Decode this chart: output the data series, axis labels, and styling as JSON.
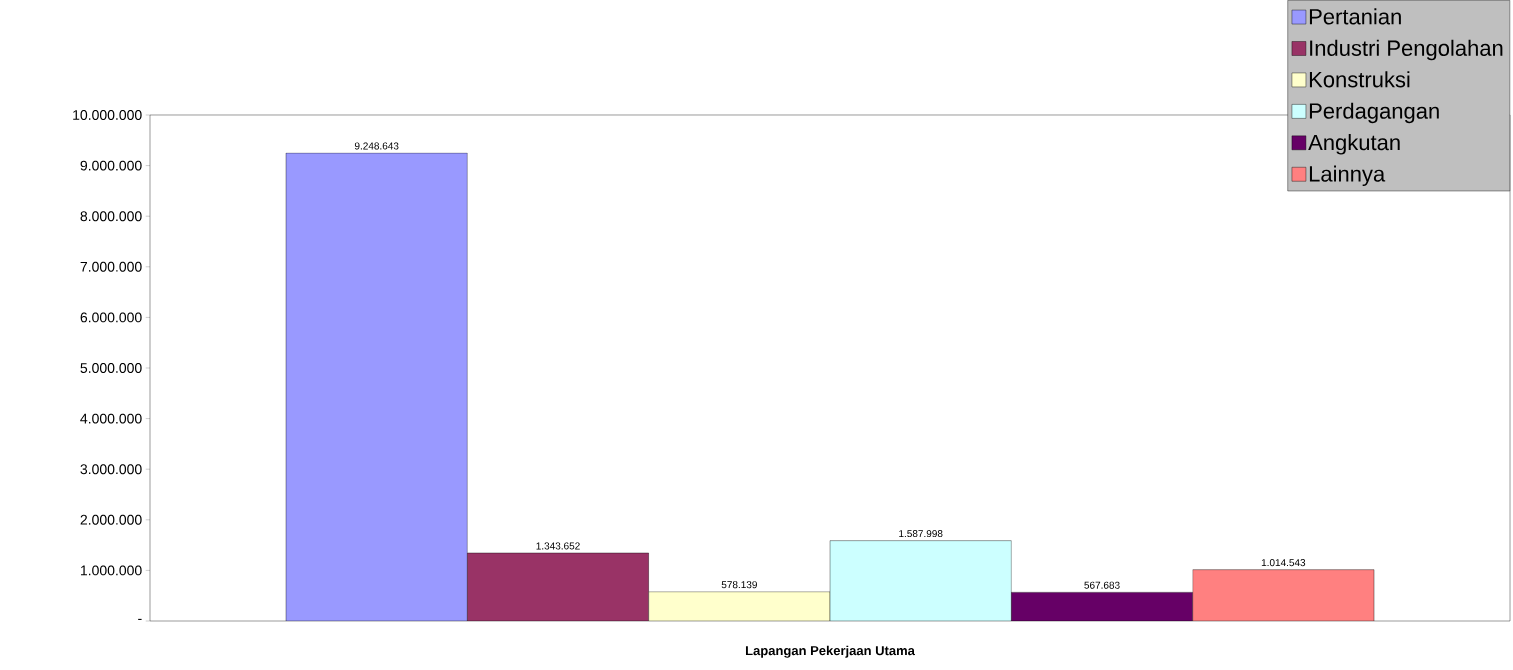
{
  "chart_data": {
    "type": "bar",
    "xlabel": "Lapangan Pekerjaan Utama",
    "categories": [
      null
    ],
    "series": [
      {
        "name": "Pertanian",
        "color": "#9999ff",
        "values": [
          9248643
        ],
        "value_labels": [
          "9.248.643"
        ]
      },
      {
        "name": "Industri Pengolahan",
        "color": "#993366",
        "values": [
          1343652
        ],
        "value_labels": [
          "1.343.652"
        ]
      },
      {
        "name": "Konstruksi",
        "color": "#ffffcc",
        "values": [
          578139
        ],
        "value_labels": [
          "578.139"
        ]
      },
      {
        "name": "Perdagangan",
        "color": "#ccffff",
        "values": [
          1587998
        ],
        "value_labels": [
          "1.587.998"
        ]
      },
      {
        "name": "Angkutan",
        "color": "#660066",
        "values": [
          567683
        ],
        "value_labels": [
          "567.683"
        ]
      },
      {
        "name": "Lainnya",
        "color": "#ff8080",
        "values": [
          1014543
        ],
        "value_labels": [
          "1.014.543"
        ]
      }
    ],
    "ylim": [
      0,
      10000000
    ],
    "yticks": [
      {
        "value": 0,
        "label": "-"
      },
      {
        "value": 1000000,
        "label": "1.000.000"
      },
      {
        "value": 2000000,
        "label": "2.000.000"
      },
      {
        "value": 3000000,
        "label": "3.000.000"
      },
      {
        "value": 4000000,
        "label": "4.000.000"
      },
      {
        "value": 5000000,
        "label": "5.000.000"
      },
      {
        "value": 6000000,
        "label": "6.000.000"
      },
      {
        "value": 7000000,
        "label": "7.000.000"
      },
      {
        "value": 8000000,
        "label": "8.000.000"
      },
      {
        "value": 9000000,
        "label": "9.000.000"
      },
      {
        "value": 10000000,
        "label": "10.000.000"
      }
    ],
    "legend": "top right"
  }
}
